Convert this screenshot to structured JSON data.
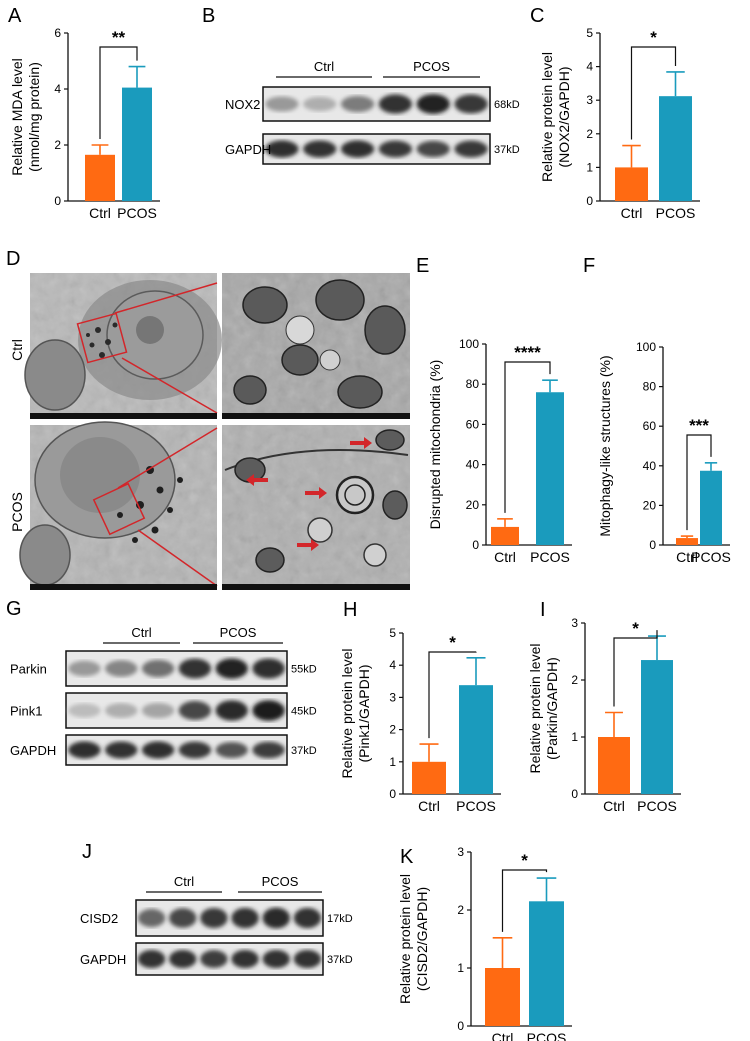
{
  "colors": {
    "ctrl": "#ff6a12",
    "pcos": "#1a9bbd",
    "axis": "#111111"
  },
  "panel_labels": [
    "A",
    "B",
    "C",
    "D",
    "E",
    "F",
    "G",
    "H",
    "I",
    "J",
    "K"
  ],
  "chart_data": [
    {
      "id": "A",
      "type": "bar",
      "categories": [
        "Ctrl",
        "PCOS"
      ],
      "values": [
        1.65,
        4.05
      ],
      "errors": [
        0.35,
        0.75
      ],
      "ylabel": [
        "Relative MDA level",
        "(nmol/mg protein)"
      ],
      "ylim": [
        0,
        6
      ],
      "yticks": [
        0,
        2,
        4,
        6
      ],
      "significance": "**"
    },
    {
      "id": "C",
      "type": "bar",
      "categories": [
        "Ctrl",
        "PCOS"
      ],
      "values": [
        1.0,
        3.12
      ],
      "errors": [
        0.65,
        0.72
      ],
      "ylabel": [
        "Relative protein level",
        "(NOX2/GAPDH)"
      ],
      "ylim": [
        0,
        5
      ],
      "yticks": [
        0,
        1,
        2,
        3,
        4,
        5
      ],
      "significance": "*"
    },
    {
      "id": "E",
      "type": "bar",
      "categories": [
        "Ctrl",
        "PCOS"
      ],
      "values": [
        9.0,
        76.0
      ],
      "errors": [
        4.0,
        6.0
      ],
      "ylabel": [
        "Disrupted mitochondria (%)"
      ],
      "ylim": [
        0,
        100
      ],
      "yticks": [
        0,
        20,
        40,
        60,
        80,
        100
      ],
      "significance": "****"
    },
    {
      "id": "F",
      "type": "bar",
      "categories": [
        "Ctrl",
        "PCOS"
      ],
      "values": [
        3.5,
        37.5
      ],
      "errors": [
        1.0,
        4.0
      ],
      "ylabel": [
        "Mitophagy-like structures (%)"
      ],
      "ylim": [
        0,
        100
      ],
      "yticks": [
        0,
        20,
        40,
        60,
        80,
        100
      ],
      "significance": "***"
    },
    {
      "id": "H",
      "type": "bar",
      "categories": [
        "Ctrl",
        "PCOS"
      ],
      "values": [
        1.0,
        3.38
      ],
      "errors": [
        0.55,
        0.85
      ],
      "ylabel": [
        "Relative protein level",
        "(Pink1/GAPDH)"
      ],
      "ylim": [
        0,
        5
      ],
      "yticks": [
        0,
        1,
        2,
        3,
        4,
        5
      ],
      "significance": "*"
    },
    {
      "id": "I",
      "type": "bar",
      "categories": [
        "Ctrl",
        "PCOS"
      ],
      "values": [
        1.0,
        2.35
      ],
      "errors": [
        0.43,
        0.42
      ],
      "ylabel": [
        "Relative protein level",
        "(Parkin/GAPDH)"
      ],
      "ylim": [
        0,
        3
      ],
      "yticks": [
        0,
        1,
        2,
        3
      ],
      "significance": "*"
    },
    {
      "id": "K",
      "type": "bar",
      "categories": [
        "Ctrl",
        "PCOS"
      ],
      "values": [
        1.0,
        2.15
      ],
      "errors": [
        0.52,
        0.4
      ],
      "ylabel": [
        "Relative protein level",
        "(CISD2/GAPDH)"
      ],
      "ylim": [
        0,
        3
      ],
      "yticks": [
        0,
        1,
        2,
        3
      ],
      "significance": "*"
    }
  ],
  "blots": [
    {
      "id": "B",
      "groups": [
        "Ctrl",
        "PCOS"
      ],
      "rows": [
        {
          "label": "NOX2",
          "size": "68kD",
          "intensity": [
            0.35,
            0.25,
            0.5,
            0.85,
            0.92,
            0.82
          ]
        },
        {
          "label": "GAPDH",
          "size": "37kD",
          "intensity": [
            0.88,
            0.85,
            0.88,
            0.82,
            0.75,
            0.82
          ]
        }
      ]
    },
    {
      "id": "G",
      "groups": [
        "Ctrl",
        "PCOS"
      ],
      "rows": [
        {
          "label": "Parkin",
          "size": "55kD",
          "intensity": [
            0.35,
            0.45,
            0.55,
            0.85,
            0.92,
            0.88
          ]
        },
        {
          "label": "Pink1",
          "size": "45kD",
          "intensity": [
            0.18,
            0.25,
            0.3,
            0.75,
            0.9,
            0.95
          ]
        },
        {
          "label": "GAPDH",
          "size": "37kD",
          "intensity": [
            0.88,
            0.85,
            0.88,
            0.82,
            0.7,
            0.8
          ]
        }
      ]
    },
    {
      "id": "J",
      "groups": [
        "Ctrl",
        "PCOS"
      ],
      "rows": [
        {
          "label": "CISD2",
          "size": "17kD",
          "intensity": [
            0.6,
            0.75,
            0.82,
            0.85,
            0.9,
            0.85
          ]
        },
        {
          "label": "GAPDH",
          "size": "37kD",
          "intensity": [
            0.85,
            0.85,
            0.8,
            0.85,
            0.85,
            0.85
          ]
        }
      ]
    }
  ],
  "micrographs": {
    "rows": [
      "Ctrl",
      "PCOS"
    ]
  }
}
